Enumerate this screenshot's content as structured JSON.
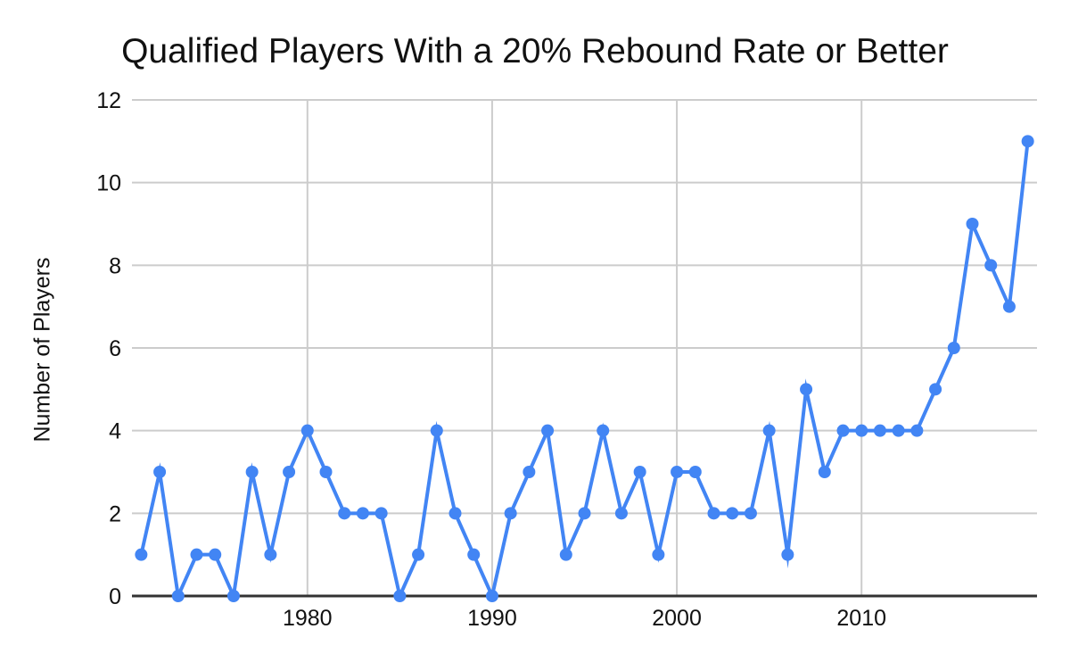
{
  "title": "Qualified Players With a 20% Rebound Rate or Better",
  "colors": {
    "line": "#4285f4",
    "marker": "#4285f4",
    "grid": "#cccccc",
    "axis": "#333333",
    "text": "#111111",
    "background": "#ffffff"
  },
  "chart_data": {
    "type": "line",
    "title": "Qualified Players With a 20% Rebound Rate or Better",
    "xlabel": "",
    "ylabel": "Number of Players",
    "x": [
      1971,
      1972,
      1973,
      1974,
      1975,
      1976,
      1977,
      1978,
      1979,
      1980,
      1981,
      1982,
      1983,
      1984,
      1985,
      1986,
      1987,
      1988,
      1989,
      1990,
      1991,
      1992,
      1993,
      1994,
      1995,
      1996,
      1997,
      1998,
      1999,
      2000,
      2001,
      2002,
      2003,
      2004,
      2005,
      2006,
      2007,
      2008,
      2009,
      2010,
      2011,
      2012,
      2013,
      2014,
      2015,
      2016,
      2017,
      2018,
      2019
    ],
    "values": [
      1,
      3,
      0,
      1,
      1,
      0,
      3,
      1,
      3,
      4,
      3,
      2,
      2,
      2,
      0,
      1,
      4,
      2,
      1,
      0,
      2,
      3,
      4,
      1,
      2,
      4,
      2,
      3,
      1,
      3,
      3,
      2,
      2,
      2,
      4,
      1,
      5,
      3,
      4,
      4,
      4,
      4,
      4,
      5,
      6,
      9,
      8,
      7,
      11
    ],
    "ylim": [
      0,
      12
    ],
    "yticks": [
      0,
      2,
      4,
      6,
      8,
      10,
      12
    ],
    "xticks": [
      1980,
      1990,
      2000,
      2010
    ],
    "grid": true,
    "legend": false,
    "marker_style": "circle"
  }
}
